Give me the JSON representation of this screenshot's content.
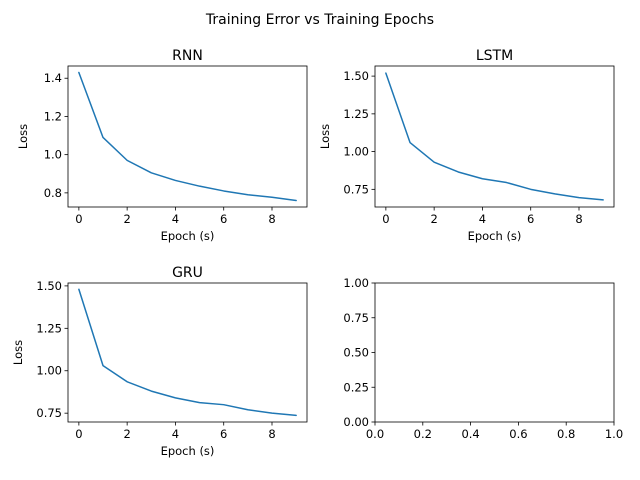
{
  "figure": {
    "suptitle": "Training Error vs Training Epochs",
    "line_color": "#1f77b4"
  },
  "chart_data": [
    {
      "type": "line",
      "title": "RNN",
      "xlabel": "Epoch (s)",
      "ylabel": "Loss",
      "xlim": [
        -0.45,
        9.45
      ],
      "ylim": [
        0.726,
        1.464
      ],
      "xticks": [
        0,
        2,
        4,
        6,
        8
      ],
      "xtick_labels": [
        "0",
        "2",
        "4",
        "6",
        "8"
      ],
      "yticks": [
        0.8,
        1.0,
        1.2,
        1.4
      ],
      "ytick_labels": [
        "0.8",
        "1.0",
        "1.2",
        "1.4"
      ],
      "series": [
        {
          "x": [
            0,
            1,
            2,
            3,
            4,
            5,
            6,
            7,
            8,
            9
          ],
          "values": [
            1.43,
            1.09,
            0.97,
            0.905,
            0.865,
            0.835,
            0.81,
            0.79,
            0.777,
            0.76
          ]
        }
      ]
    },
    {
      "type": "line",
      "title": "LSTM",
      "xlabel": "Epoch (s)",
      "ylabel": "Loss",
      "xlim": [
        -0.45,
        9.45
      ],
      "ylim": [
        0.633,
        1.567
      ],
      "xticks": [
        0,
        2,
        4,
        6,
        8
      ],
      "xtick_labels": [
        "0",
        "2",
        "4",
        "6",
        "8"
      ],
      "yticks": [
        0.75,
        1.0,
        1.25,
        1.5
      ],
      "ytick_labels": [
        "0.75",
        "1.00",
        "1.25",
        "1.50"
      ],
      "series": [
        {
          "x": [
            0,
            1,
            2,
            3,
            4,
            5,
            6,
            7,
            8,
            9
          ],
          "values": [
            1.52,
            1.06,
            0.93,
            0.865,
            0.82,
            0.795,
            0.75,
            0.72,
            0.695,
            0.68
          ]
        }
      ]
    },
    {
      "type": "line",
      "title": "GRU",
      "xlabel": "Epoch (s)",
      "ylabel": "Loss",
      "xlim": [
        -0.45,
        9.45
      ],
      "ylim": [
        0.698,
        1.517
      ],
      "xticks": [
        0,
        2,
        4,
        6,
        8
      ],
      "xtick_labels": [
        "0",
        "2",
        "4",
        "6",
        "8"
      ],
      "yticks": [
        0.75,
        1.0,
        1.25,
        1.5
      ],
      "ytick_labels": [
        "0.75",
        "1.00",
        "1.25",
        "1.50"
      ],
      "series": [
        {
          "x": [
            0,
            1,
            2,
            3,
            4,
            5,
            6,
            7,
            8,
            9
          ],
          "values": [
            1.48,
            1.03,
            0.935,
            0.88,
            0.84,
            0.812,
            0.8,
            0.77,
            0.75,
            0.737
          ]
        }
      ]
    },
    {
      "type": "line",
      "title": "",
      "xlabel": "",
      "ylabel": "",
      "xlim": [
        0,
        1
      ],
      "ylim": [
        0,
        1
      ],
      "xticks": [
        0,
        0.2,
        0.4,
        0.6,
        0.8,
        1.0
      ],
      "xtick_labels": [
        "0.0",
        "0.2",
        "0.4",
        "0.6",
        "0.8",
        "1.0"
      ],
      "yticks": [
        0,
        0.25,
        0.5,
        0.75,
        1.0
      ],
      "ytick_labels": [
        "0.00",
        "0.25",
        "0.50",
        "0.75",
        "1.00"
      ],
      "series": []
    }
  ]
}
